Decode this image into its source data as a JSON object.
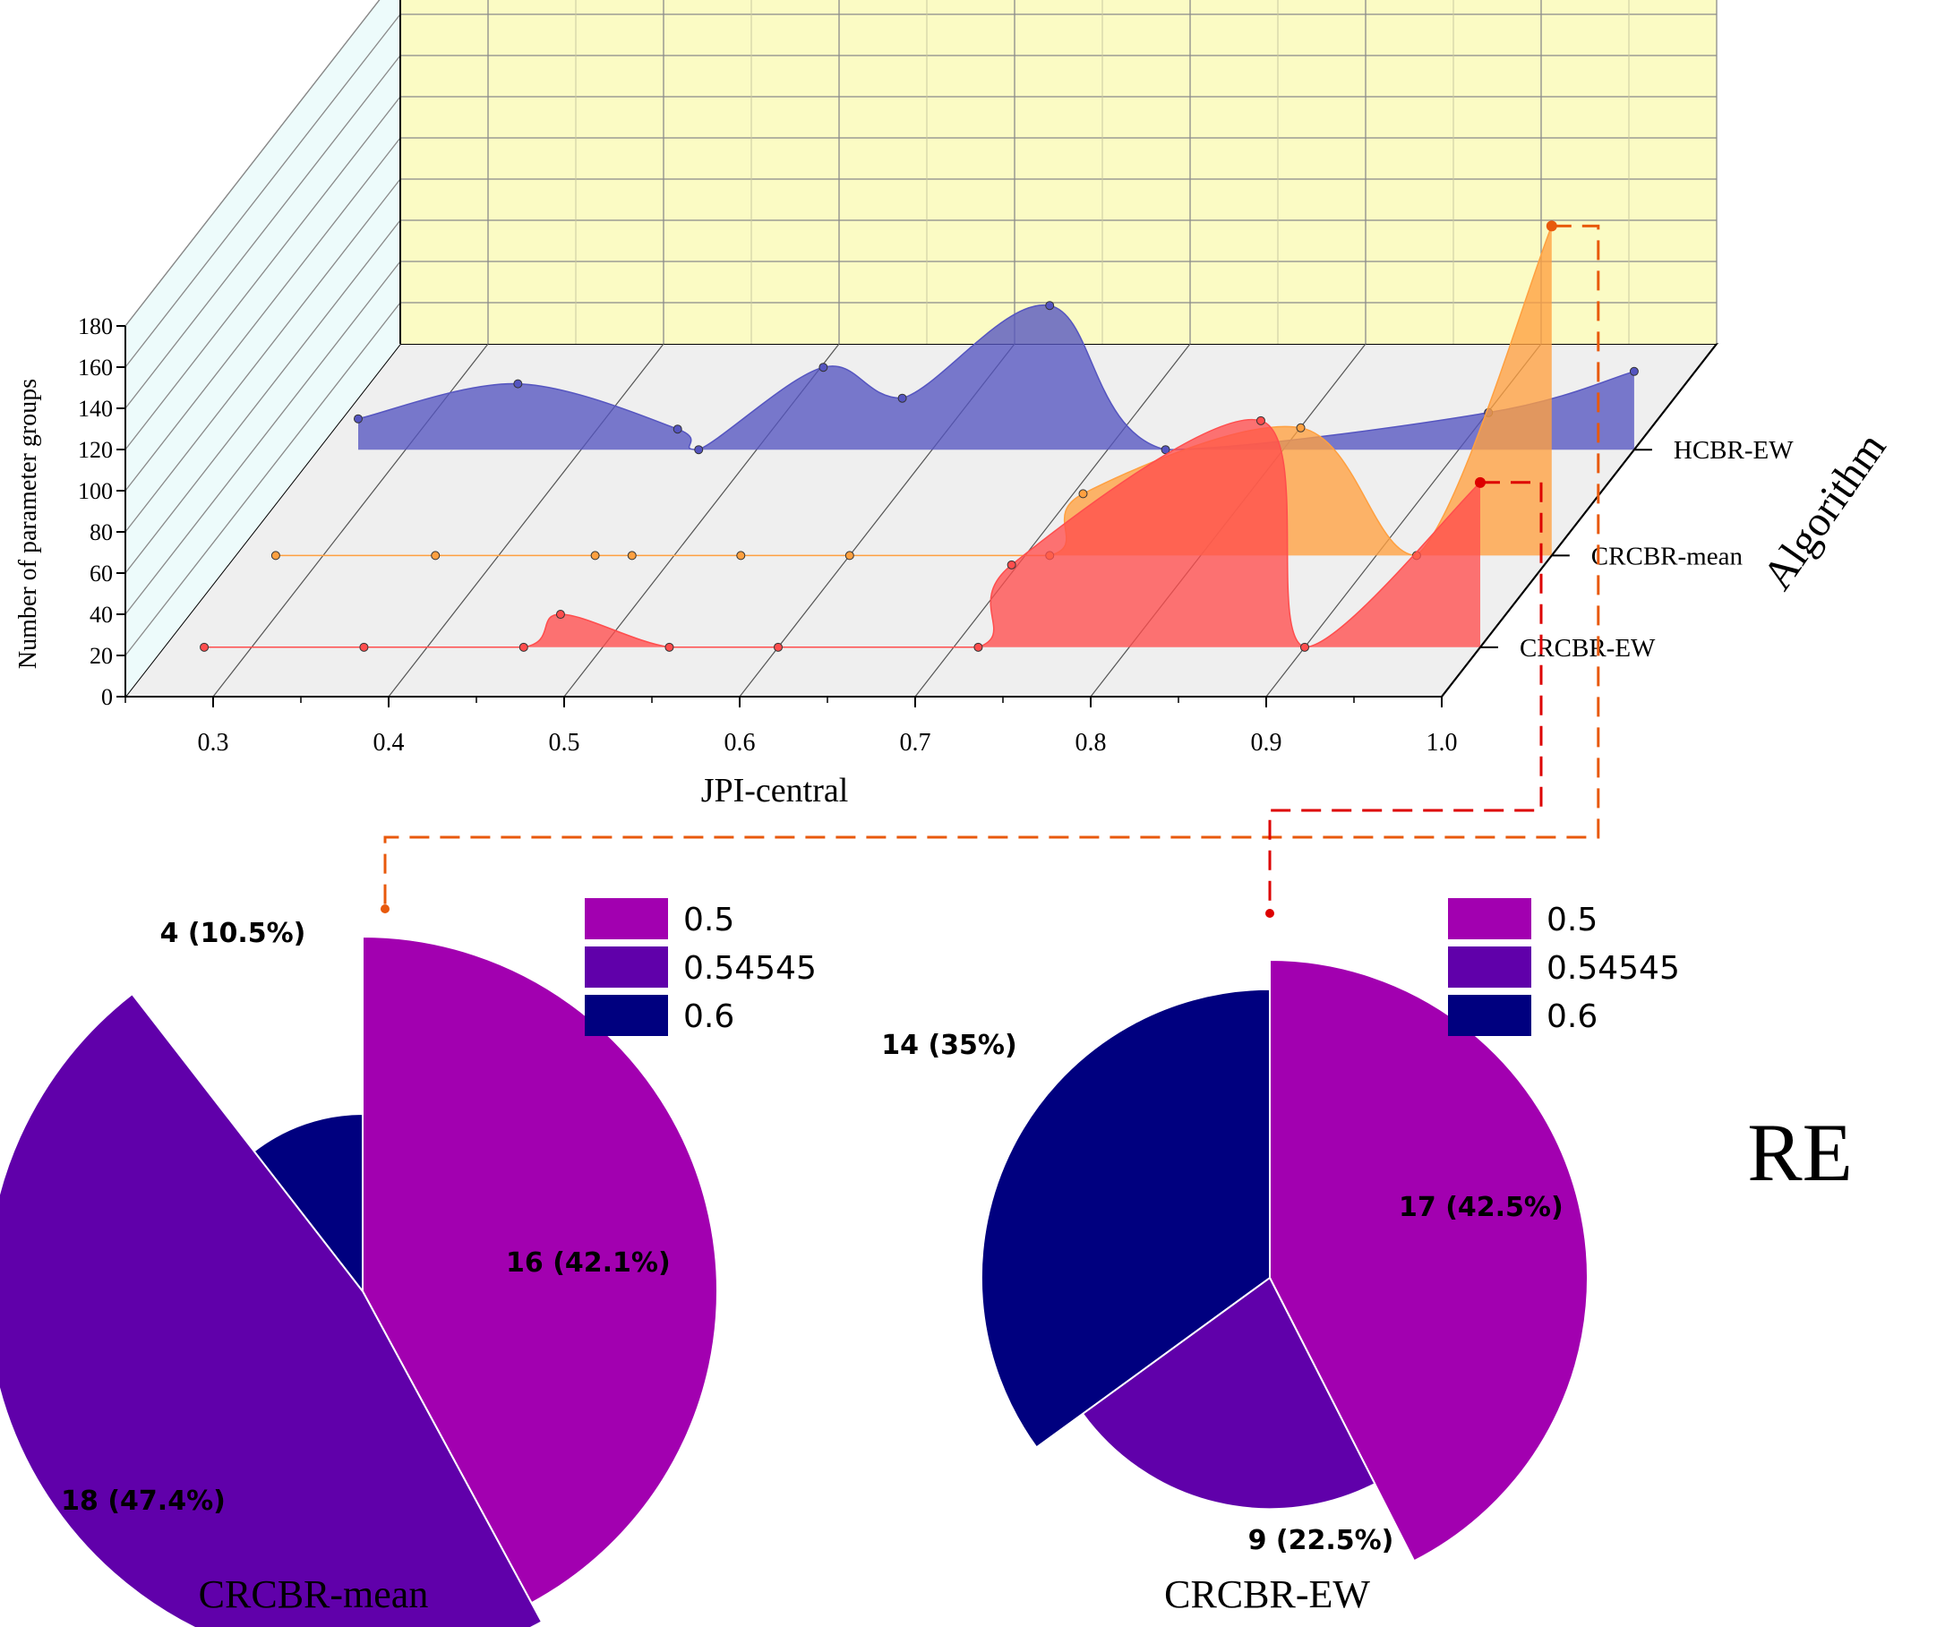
{
  "chart_data": [
    {
      "type": "area-3d-waterfall",
      "title": "",
      "xlabel": "JPI-central",
      "ylabel": "Number of parameter groups",
      "zlabel": "Algorithm",
      "xlim": [
        0.25,
        1.0
      ],
      "ylim": [
        0,
        180
      ],
      "x_ticks": [
        "0.3",
        "0.4",
        "0.5",
        "0.6",
        "0.7",
        "0.8",
        "0.9",
        "1.0"
      ],
      "y_ticks": [
        "0",
        "20",
        "40",
        "60",
        "80",
        "100",
        "120",
        "140",
        "160",
        "180"
      ],
      "categories": [
        "CRCBR-EW",
        "CRCBR-mean",
        "HCBR-EW"
      ],
      "series": [
        {
          "name": "CRCBR-EW",
          "color": "#ff4d4d",
          "x": [
            0.273,
            0.364,
            0.455,
            0.476,
            0.538,
            0.6,
            0.714,
            0.733,
            0.875,
            0.9,
            1.0
          ],
          "values": [
            0,
            0,
            0,
            16,
            0,
            0,
            0,
            40,
            110,
            0,
            80
          ]
        },
        {
          "name": "CRCBR-mean",
          "color": "#ffa040",
          "x": [
            0.273,
            0.364,
            0.455,
            0.476,
            0.538,
            0.6,
            0.714,
            0.733,
            0.857,
            0.923,
            1.0
          ],
          "values": [
            0,
            0,
            0,
            0,
            0,
            0,
            0,
            30,
            62,
            0,
            160
          ]
        },
        {
          "name": "HCBR-EW",
          "color": "#5555c0",
          "x": [
            0.273,
            0.364,
            0.455,
            0.467,
            0.538,
            0.583,
            0.667,
            0.733,
            0.917,
            1.0
          ],
          "values": [
            15,
            32,
            10,
            0,
            40,
            25,
            70,
            0,
            18,
            38
          ]
        }
      ]
    },
    {
      "type": "pie",
      "title": "CRCBR-mean",
      "categories": [
        "0.5",
        "0.54545",
        "0.6"
      ],
      "values": [
        16,
        18,
        4
      ],
      "percent": [
        42.1,
        47.4,
        10.5
      ],
      "labels": [
        "16 (42.1%)",
        "18 (47.4%)",
        "4 (10.5%)"
      ],
      "legend": "top-right"
    },
    {
      "type": "pie",
      "title": "CRCBR-EW",
      "categories": [
        "0.5",
        "0.54545",
        "0.6"
      ],
      "values": [
        17,
        9,
        14
      ],
      "percent": [
        42.5,
        22.5,
        35.0
      ],
      "labels": [
        "17 (42.5%)",
        "9 (22.5%)",
        "14 (35%)"
      ],
      "legend": "top-right"
    }
  ],
  "colors": {
    "slice_05": "#a200b0",
    "slice_054545": "#6000aa",
    "slice_06": "#00007f",
    "back_wall": "#fbfbc4",
    "side_wall": "#edfbfb",
    "floor": "#efefef",
    "connector_mean": "#e8590c",
    "connector_ew": "#dd0000"
  },
  "corner_label": "RE"
}
